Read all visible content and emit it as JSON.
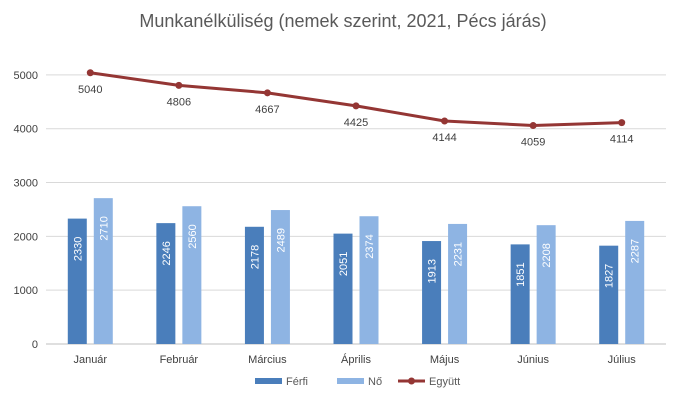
{
  "chart_data": {
    "type": "bar",
    "title": "Munkanélküliség (nemek szerint, 2021, Pécs járás)",
    "categories": [
      "Január",
      "Február",
      "Március",
      "Április",
      "Május",
      "Június",
      "Július"
    ],
    "ylim": [
      0,
      5500
    ],
    "yticks": [
      0,
      1000,
      2000,
      3000,
      4000,
      5000
    ],
    "grid": true,
    "legend": "bottom",
    "series": [
      {
        "name": "Férfi",
        "type": "bar",
        "color": "#4a7ebb",
        "values": [
          2330,
          2246,
          2178,
          2051,
          1913,
          1851,
          1827
        ]
      },
      {
        "name": "Nő",
        "type": "bar",
        "color": "#8eb4e3",
        "values": [
          2710,
          2560,
          2489,
          2374,
          2231,
          2208,
          2287
        ]
      },
      {
        "name": "Együtt",
        "type": "line",
        "color": "#943634",
        "values": [
          5040,
          4806,
          4667,
          4425,
          4144,
          4059,
          4114
        ]
      }
    ]
  }
}
